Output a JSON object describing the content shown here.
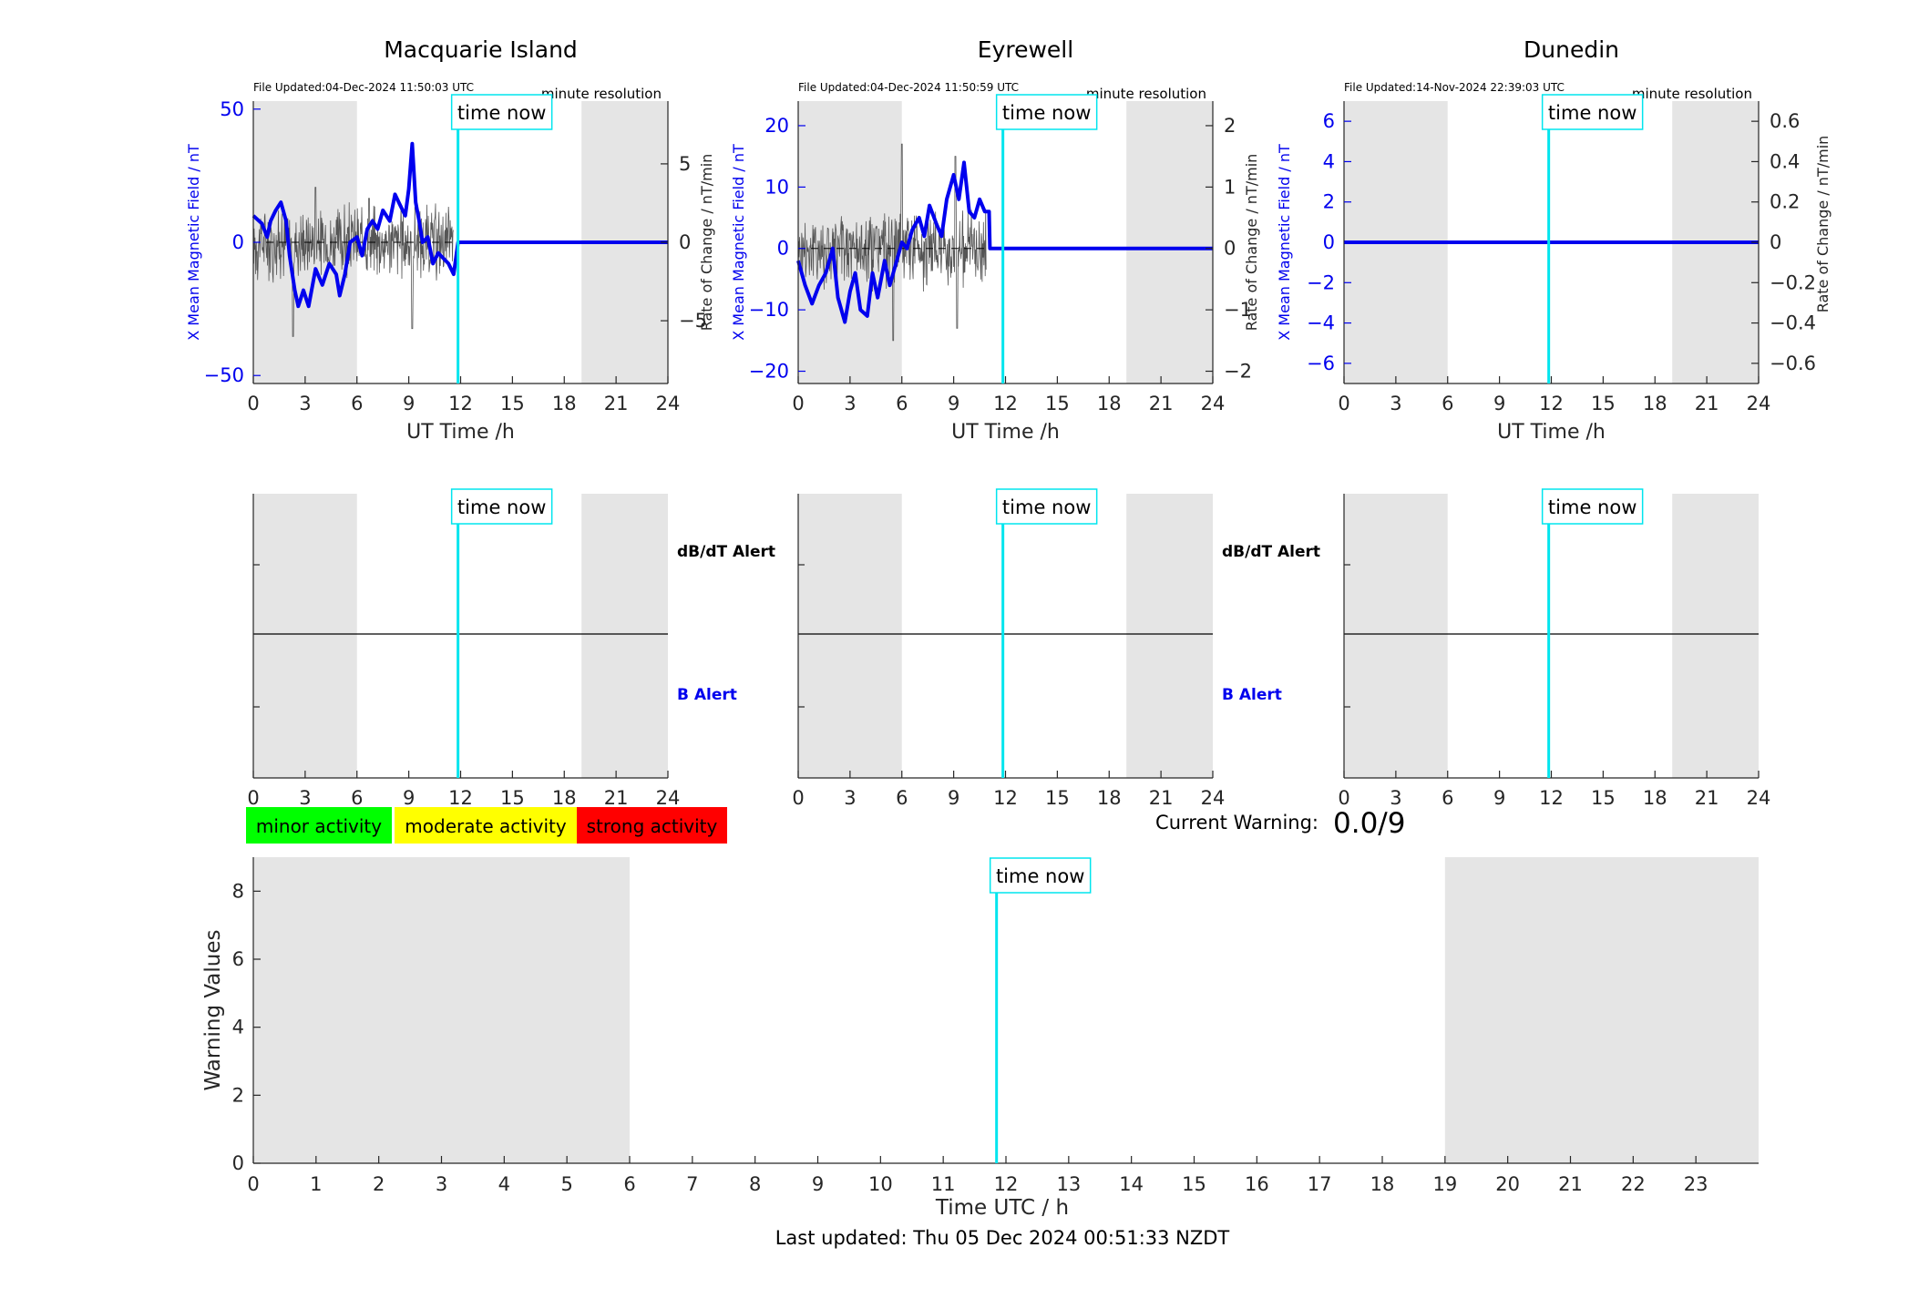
{
  "colors": {
    "magnetic": "#0000ee",
    "rate": "#555555",
    "time_now": "#00e5ee",
    "night_shade": "#e5e5e5",
    "minor": "#00ff00",
    "moderate": "#ffff00",
    "strong": "#ff0000"
  },
  "time_now_label": "time now",
  "resolution_label": "minute resolution",
  "top_xlabel": "UT Time /h",
  "left_ylabel": "X Mean Magnetic Field / nT",
  "right_ylabel": "Rate of Change / nT/min",
  "db_alert_label": "dB/dT Alert",
  "b_alert_label": "B Alert",
  "legend": {
    "minor": "minor activity",
    "moderate": "moderate activity",
    "strong": "strong activity"
  },
  "current_warning_label": "Current Warning:",
  "current_warning_value": "0.0/9",
  "bottom_ylabel": "Warning Values",
  "bottom_xlabel": "Time UTC / h",
  "last_updated": "Last updated: Thu 05 Dec 2024 00:51:33 NZDT",
  "time_now_hour": 11.85,
  "chart_data": [
    {
      "type": "line",
      "title": "Macquarie Island",
      "file_updated": "File Updated:04-Dec-2024 11:50:03 UTC",
      "xlim": [
        0,
        24
      ],
      "xticks": [
        0,
        3,
        6,
        9,
        12,
        15,
        18,
        21,
        24
      ],
      "ylim": [
        -53,
        53
      ],
      "yticks": [
        -50,
        0,
        50
      ],
      "y2lim": [
        -9,
        9
      ],
      "y2ticks": [
        -5,
        0,
        5
      ],
      "shade": [
        [
          0,
          6
        ],
        [
          19,
          24
        ]
      ],
      "series": [
        {
          "axis": "left",
          "x": [
            0,
            0.5,
            0.8,
            1,
            1.3,
            1.6,
            1.9,
            2.1,
            2.4,
            2.6,
            2.9,
            3.2,
            3.6,
            4,
            4.4,
            4.8,
            5,
            5.3,
            5.6,
            6,
            6.3,
            6.6,
            6.9,
            7.2,
            7.5,
            7.9,
            8.2,
            8.5,
            8.8,
            9,
            9.2,
            9.4,
            9.6,
            9.8,
            10.1,
            10.4,
            10.7,
            11,
            11.3,
            11.6,
            11.85,
            12,
            15,
            18,
            21,
            24
          ],
          "values": [
            10,
            7,
            2,
            8,
            12,
            15,
            8,
            -5,
            -18,
            -24,
            -18,
            -24,
            -10,
            -16,
            -8,
            -12,
            -20,
            -12,
            0,
            2,
            -5,
            5,
            8,
            5,
            12,
            8,
            18,
            14,
            10,
            20,
            37,
            15,
            8,
            0,
            2,
            -8,
            -4,
            -6,
            -8,
            -12,
            0,
            0,
            0,
            0,
            0,
            0
          ]
        },
        {
          "axis": "right",
          "style": "noise",
          "amplitude": 2.0,
          "xrange": [
            0,
            11.6
          ],
          "spikes": [
            [
              2.3,
              -6
            ],
            [
              6.7,
              2.8
            ],
            [
              9.2,
              -5.5
            ],
            [
              3.6,
              3.5
            ]
          ]
        }
      ]
    },
    {
      "type": "line",
      "title": "Eyrewell",
      "file_updated": "File Updated:04-Dec-2024 11:50:59 UTC",
      "xlim": [
        0,
        24
      ],
      "xticks": [
        0,
        3,
        6,
        9,
        12,
        15,
        18,
        21,
        24
      ],
      "ylim": [
        -22,
        24
      ],
      "yticks": [
        -20,
        -10,
        0,
        10,
        20
      ],
      "y2lim": [
        -2.2,
        2.4
      ],
      "y2ticks": [
        -2,
        -1,
        0,
        1,
        2
      ],
      "shade": [
        [
          0,
          6
        ],
        [
          19,
          24
        ]
      ],
      "series": [
        {
          "axis": "left",
          "x": [
            0,
            0.4,
            0.8,
            1.2,
            1.6,
            2,
            2.3,
            2.7,
            3,
            3.3,
            3.6,
            4,
            4.3,
            4.6,
            5,
            5.3,
            5.6,
            6,
            6.3,
            6.6,
            7,
            7.3,
            7.6,
            8,
            8.3,
            8.6,
            9,
            9.3,
            9.6,
            9.9,
            10.2,
            10.5,
            10.8,
            11.05,
            11.1,
            12,
            15,
            18,
            21,
            24
          ],
          "values": [
            -2,
            -6,
            -9,
            -6,
            -4,
            0,
            -8,
            -12,
            -7,
            -4,
            -10,
            -11,
            -4,
            -8,
            -2,
            -6,
            -3,
            1,
            0,
            3,
            5,
            2,
            7,
            4,
            2,
            8,
            12,
            8,
            14,
            6,
            5,
            8,
            6,
            6,
            0,
            0,
            0,
            0,
            0,
            0
          ]
        },
        {
          "axis": "right",
          "style": "noise",
          "amplitude": 0.55,
          "xrange": [
            0,
            10.9
          ],
          "spikes": [
            [
              6,
              1.7
            ],
            [
              5.5,
              -1.5
            ],
            [
              9.2,
              -1.3
            ],
            [
              9.1,
              1.5
            ]
          ]
        }
      ]
    },
    {
      "type": "line",
      "title": "Dunedin",
      "file_updated": "File Updated:14-Nov-2024 22:39:03 UTC",
      "xlim": [
        0,
        24
      ],
      "xticks": [
        0,
        3,
        6,
        9,
        12,
        15,
        18,
        21,
        24
      ],
      "ylim": [
        -7,
        7
      ],
      "yticks": [
        -6,
        -4,
        -2,
        0,
        2,
        4,
        6
      ],
      "y2lim": [
        -0.7,
        0.7
      ],
      "y2ticks": [
        -0.6,
        -0.4,
        -0.2,
        0,
        0.2,
        0.4,
        0.6
      ],
      "shade": [
        [
          0,
          6
        ],
        [
          19,
          24
        ]
      ],
      "series": [
        {
          "axis": "left",
          "x": [
            0,
            24
          ],
          "values": [
            0,
            0
          ]
        },
        {
          "axis": "right",
          "x": [
            0,
            24
          ],
          "values": [
            0,
            0
          ]
        }
      ]
    },
    {
      "type": "line",
      "title": "",
      "xlim": [
        0,
        24
      ],
      "xticks": [
        0,
        3,
        6,
        9,
        12,
        15,
        18,
        21,
        24
      ],
      "shade": [
        [
          0,
          6
        ],
        [
          19,
          24
        ]
      ],
      "alerts": [
        "dB/dT Alert",
        "B Alert"
      ]
    },
    {
      "type": "line",
      "title": "",
      "xlim": [
        0,
        24
      ],
      "xticks": [
        0,
        3,
        6,
        9,
        12,
        15,
        18,
        21,
        24
      ],
      "shade": [
        [
          0,
          6
        ],
        [
          19,
          24
        ]
      ],
      "alerts": [
        "dB/dT Alert",
        "B Alert"
      ]
    },
    {
      "type": "line",
      "title": "",
      "xlim": [
        0,
        24
      ],
      "xticks": [
        0,
        3,
        6,
        9,
        12,
        15,
        18,
        21,
        24
      ],
      "shade": [
        [
          0,
          6
        ],
        [
          19,
          24
        ]
      ],
      "alerts": []
    },
    {
      "type": "bar",
      "title": "",
      "xlabel": "Time UTC / h",
      "ylabel": "Warning Values",
      "xlim": [
        0,
        24
      ],
      "xticks": [
        0,
        1,
        2,
        3,
        4,
        5,
        6,
        7,
        8,
        9,
        10,
        11,
        12,
        13,
        14,
        15,
        16,
        17,
        18,
        19,
        20,
        21,
        22,
        23
      ],
      "ylim": [
        0,
        9
      ],
      "yticks": [
        0,
        2,
        4,
        6,
        8
      ],
      "shade": [
        [
          0,
          6
        ],
        [
          19,
          24
        ]
      ],
      "values": []
    }
  ]
}
